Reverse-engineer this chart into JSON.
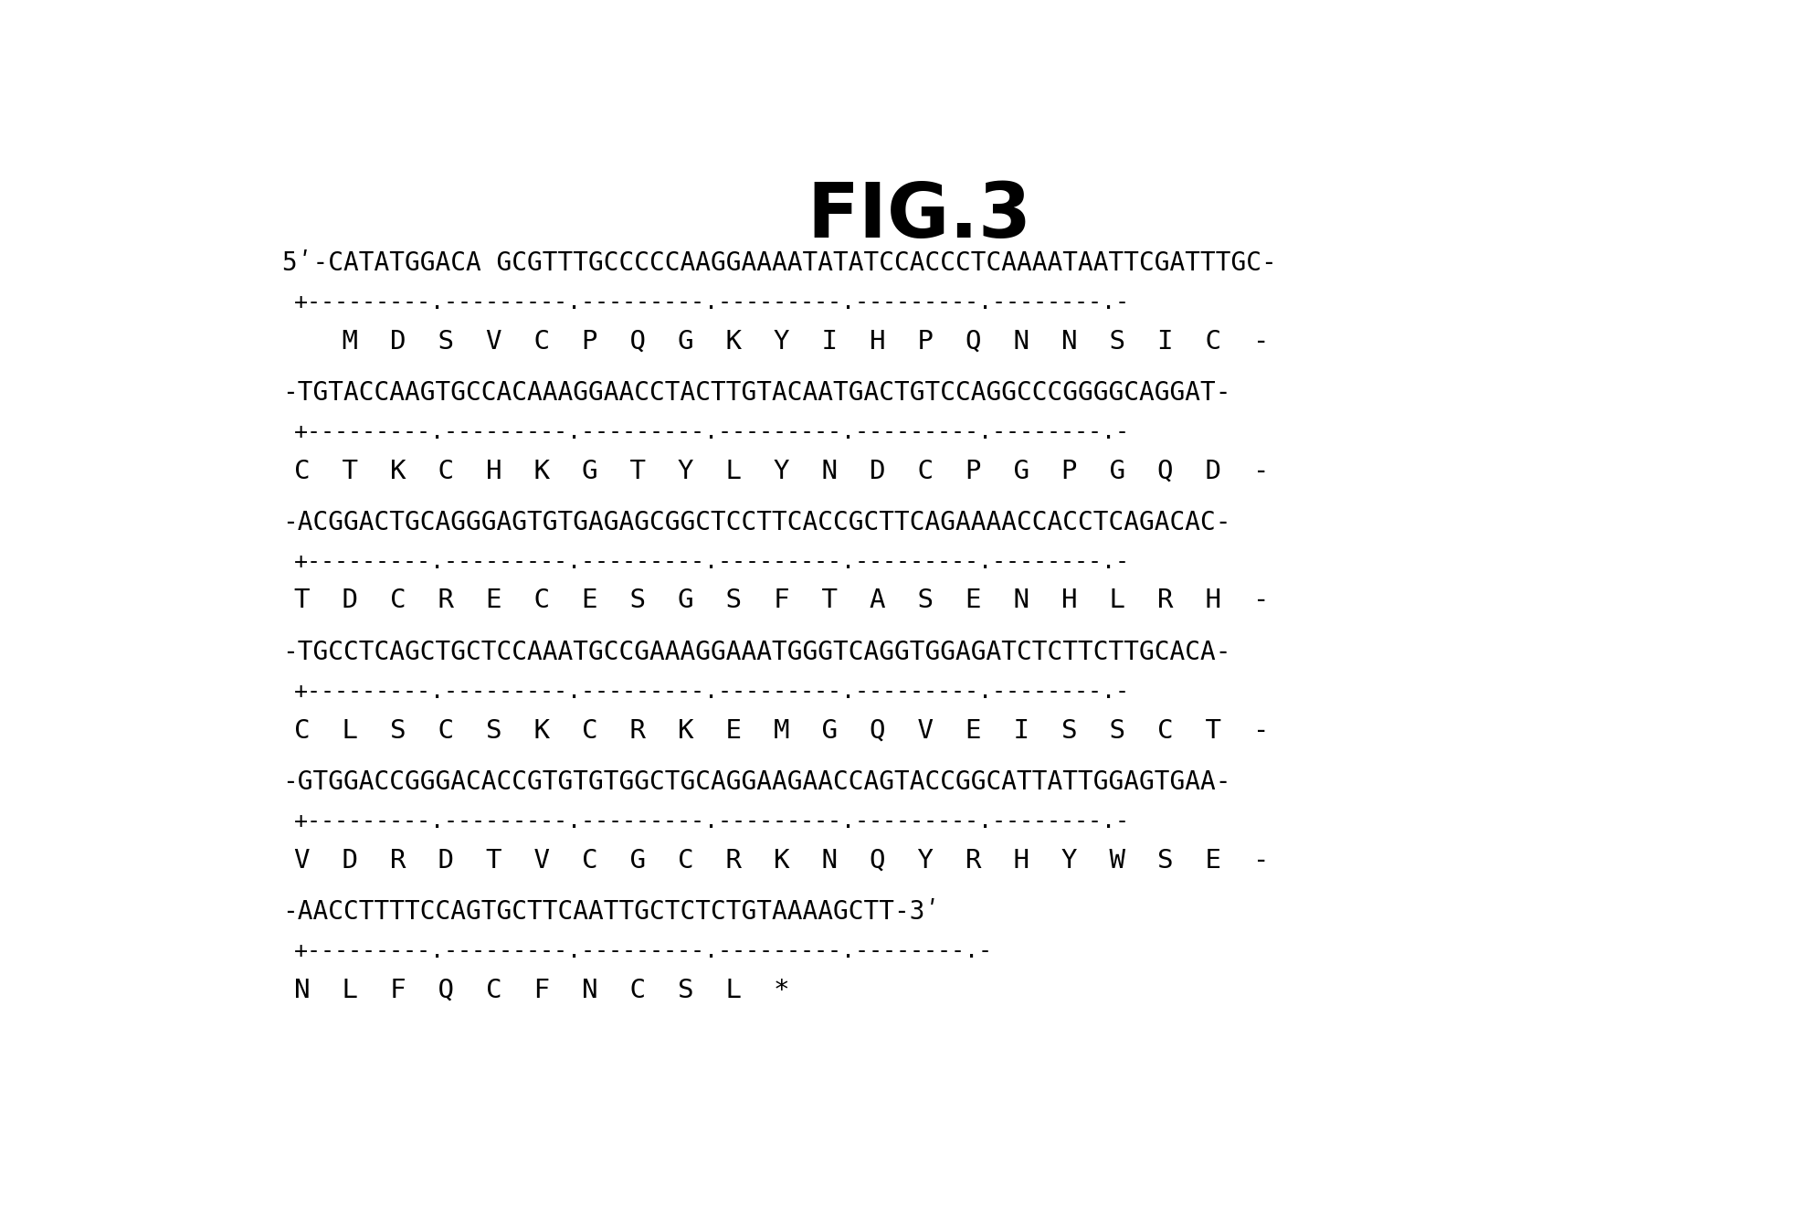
{
  "title": "FIG.3",
  "background_color": "#ffffff",
  "text_color": "#000000",
  "rows": [
    {
      "dna": "5ʹ-CATATGGACA GCGTTTGCCCCCAAGGAAAATATATCCACCCTCAAAATAATTCGATTTGC-",
      "ruler": "+---------.---------.---------.---------.---------.--------.-",
      "aa": "   M  D  S  V  C  P  Q  G  K  Y  I  H  P  Q  N  N  S  I  C  -"
    },
    {
      "dna": "-TGTACCAAGTGCCACAAAGGAACCTACTTGTACAATGACTGTCCAGGCCCGGGGCAGGAT-",
      "ruler": "+---------.---------.---------.---------.---------.--------.-",
      "aa": "C  T  K  C  H  K  G  T  Y  L  Y  N  D  C  P  G  P  G  Q  D  -"
    },
    {
      "dna": "-ACGGACTGCAGGGAGTGTGAGAGCGGCTCCTTCACCGCTTCAGAAAACCACCTCAGACAC-",
      "ruler": "+---------.---------.---------.---------.---------.--------.-",
      "aa": "T  D  C  R  E  C  E  S  G  S  F  T  A  S  E  N  H  L  R  H  -"
    },
    {
      "dna": "-TGCCTCAGCTGCTCCAAATGCCGAAAGGAAATGGGTCAGGTGGAGATCTCTTCTTGCACA-",
      "ruler": "+---------.---------.---------.---------.---------.--------.-",
      "aa": "C  L  S  C  S  K  C  R  K  E  M  G  Q  V  E  I  S  S  C  T  -"
    },
    {
      "dna": "-GTGGACCGGGACACCGTGTGTGGCTGCAGGAAGAACCAGTACCGGCATTATTGGAGTGAA-",
      "ruler": "+---------.---------.---------.---------.---------.--------.-",
      "aa": "V  D  R  D  T  V  C  G  C  R  K  N  Q  Y  R  H  Y  W  S  E  -"
    },
    {
      "dna": "-AACCTTTTCCAGTGCTTCAATTGCTCTCTGTAAAAGCTT-3ʹ",
      "ruler": "+---------.---------.---------.---------.--------.-",
      "aa": "N  L  F  Q  C  F  N  C  S  L  *"
    }
  ],
  "title_fontsize": 60,
  "dna_fontsize": 20,
  "ruler_fontsize": 18,
  "aa_fontsize": 21,
  "fig_width": 19.64,
  "fig_height": 13.33,
  "dpi": 100
}
